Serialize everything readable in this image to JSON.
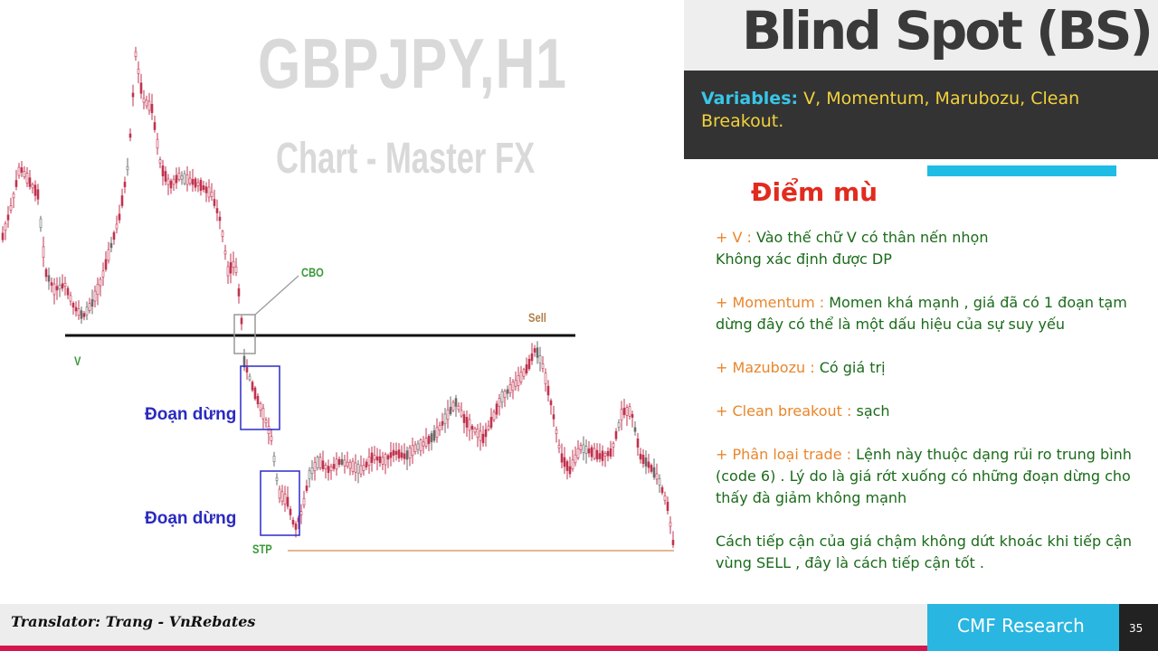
{
  "title": "Blind Spot (BS)",
  "variables": {
    "key": "Variables:",
    "value": " V, Momentum, Marubozu, Clean Breakout."
  },
  "section_heading": "Điểm mù",
  "notes": [
    {
      "key": "+ V : ",
      "text": "Vào thế chữ V có thân nến nhọn\nKhông xác định được DP"
    },
    {
      "key": "+ Momentum : ",
      "text": "Momen khá mạnh , giá đã có 1 đoạn tạm dừng đây có thể là một dấu hiệu của sự suy yếu"
    },
    {
      "key": "+ Mazubozu : ",
      "text": "Có giá trị"
    },
    {
      "key": "+ Clean breakout : ",
      "text": "sạch"
    },
    {
      "key": "+ Phân loại trade : ",
      "text": "Lệnh này thuộc dạng rủi ro trung bình (code 6) . Lý do là giá rớt xuống có những đoạn dừng cho thấy đà giảm không mạnh"
    },
    {
      "key": "",
      "text": "Cách tiếp cận của giá chậm không dứt khoác khi tiếp cận vùng SELL , đây là cách tiếp cận tốt ."
    }
  ],
  "chart": {
    "watermark_symbol": "GBPJPY,H1",
    "watermark_source": "Chart - Master FX",
    "labels": {
      "cbo": "CBO",
      "sell": "Sell",
      "v": "V",
      "stp": "STP"
    },
    "pause_label_1": "Đoạn dừng",
    "pause_label_2": "Đoạn dừng",
    "colors": {
      "candle": "#c0334f",
      "candle_alt": "#6a6a6a",
      "level": "#111111",
      "stp_line": "#d9a070",
      "box": "#2b2bc8"
    }
  },
  "footer": {
    "translator": "Translator: Trang - VnRebates",
    "brand": "CMF Research",
    "page": "35"
  },
  "colors": {
    "accent_blue": "#29b6e1",
    "accent_red": "#d6154e",
    "heading_red": "#e12b1e",
    "note_green": "#1a6b1a",
    "note_orange": "#e9862c"
  }
}
